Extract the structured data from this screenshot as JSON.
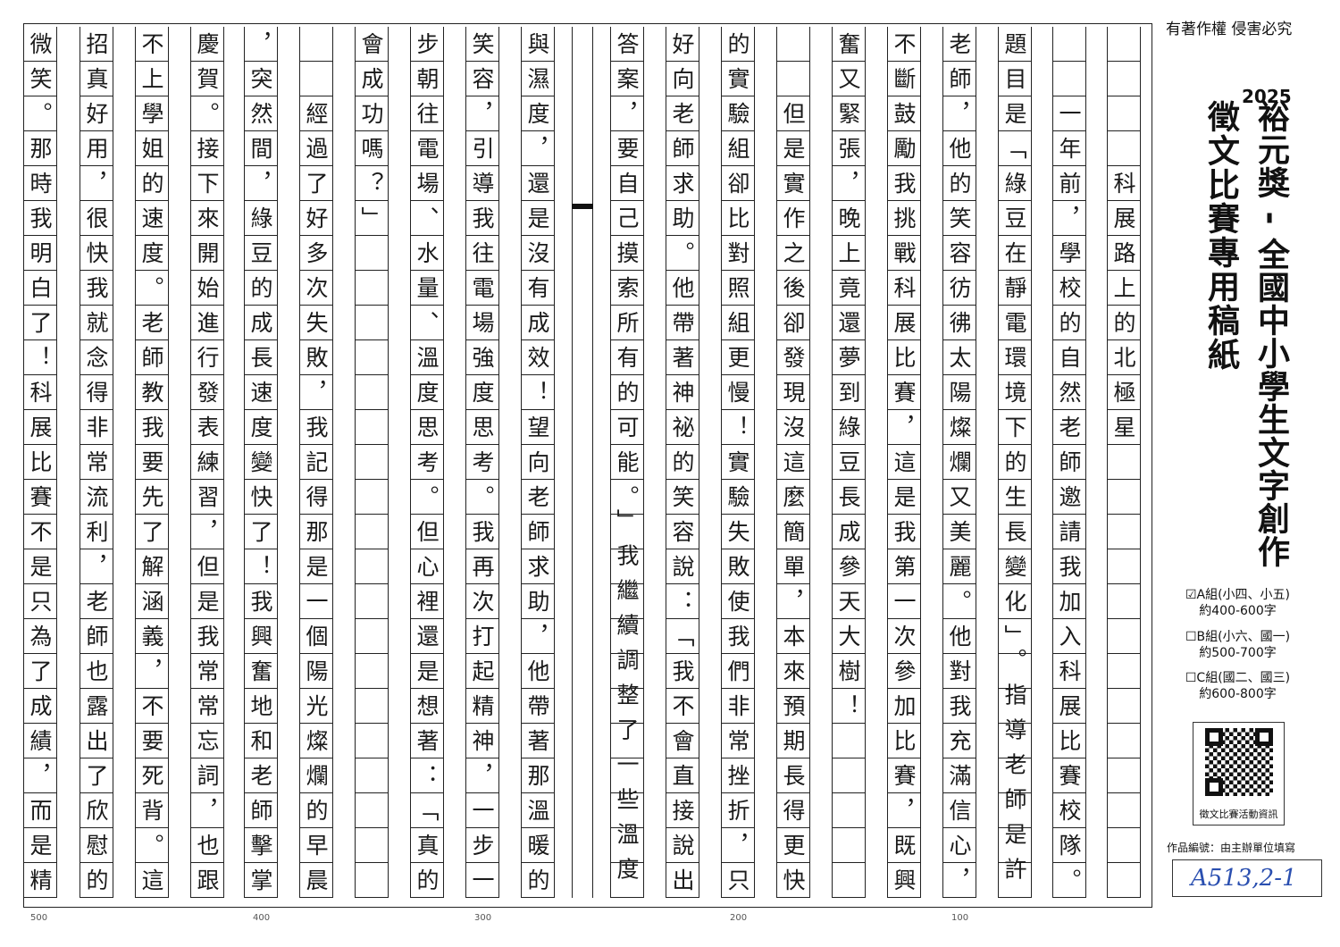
{
  "header": {
    "copyright": "有著作權 侵害必究",
    "year": "2025",
    "title": "裕元獎 - 全國中小學生文字創作",
    "subtitle": "徵文比賽專用稿紙"
  },
  "groups": [
    {
      "label": "☑A組(小四、小五)",
      "range": "約400-600字",
      "checked": true
    },
    {
      "label": "☐B組(小六、國一)",
      "range": "約500-700字",
      "checked": false
    },
    {
      "label": "☐C組(國二、國三)",
      "range": "約600-800字",
      "checked": false
    }
  ],
  "qr": {
    "label": "徵文比賽活動資訊"
  },
  "work_number": {
    "label": "作品編號：由主辦單位填寫",
    "value": "A513,2-1"
  },
  "essay": {
    "columns": [
      "　　　　科展路上的北極星",
      "　　一年前，學校的自然老師邀請我加入科展比賽校隊。",
      "題目是「綠豆在靜電環境下的生長變化」。指導老師是許",
      "老師，他的笑容彷彿太陽燦爛又美麗。他對我充滿信心，",
      "不斷鼓勵我挑戰科展比賽，這是我第一次參加比賽，既興",
      "奮又緊張，晚上竟還夢到綠豆長成參天大樹！",
      "　　但是實作之後卻發現沒這麼簡單，本來預期長得更快",
      "的實驗組卻比對照組更慢！實驗失敗使我們非常挫折，只",
      "好向老師求助。他帶著神祕的笑容說：「我不會直接說出",
      "答案，要自己摸索所有的可能。」我繼續調整了一些溫度",
      "與濕度，還是沒有成效！望向老師求助，他帶著那溫暖的",
      "笑容，引導我往電場強度思考。我再次打起精神，一步一",
      "步朝往電場、水量、溫度思考。但心裡還是想著：「真的",
      "會成功嗎？」",
      "　　經過了好多次失敗，我記得那是一個陽光燦爛的早晨",
      "，突然間，綠豆的成長速度變快了！我興奮地和老師擊掌",
      "慶賀。接下來開始進行發表練習，但是我常常忘詞，也跟",
      "不上學姐的速度。老師教我要先了解涵義，不要死背。這",
      "招真好用，很快我就念得非常流利，老師也露出了欣慰的",
      "微笑。那時我明白了！科展比賽不是只為了成績，而是精"
    ]
  },
  "char_counts": [
    "500",
    "400",
    "300",
    "200",
    "100"
  ]
}
